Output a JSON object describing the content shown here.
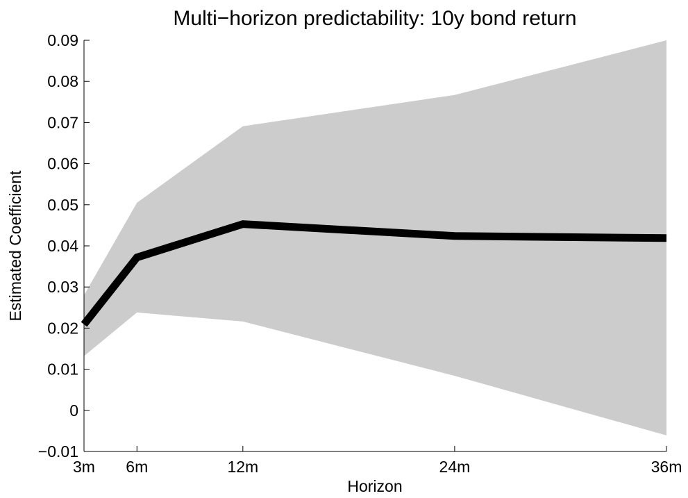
{
  "chart_data": {
    "type": "band-line",
    "title": "Multi−horizon predictability: 10y bond return",
    "x_label": "Horizon",
    "y_label": "Estimated Coefficient",
    "x": [
      3,
      6,
      12,
      24,
      36
    ],
    "values": [
      0.0209,
      0.0372,
      0.0453,
      0.0424,
      0.0419
    ],
    "upper": [
      0.028,
      0.0505,
      0.0691,
      0.0767,
      0.09
    ],
    "lower": [
      0.0132,
      0.0238,
      0.0216,
      0.0084,
      -0.0061
    ],
    "color": "#000000",
    "band_color": "#cccccc",
    "xlim": [
      3,
      36
    ],
    "xticks": [
      {
        "value": 3,
        "label": "3m"
      },
      {
        "value": 6,
        "label": "6m"
      },
      {
        "value": 12,
        "label": "12m"
      },
      {
        "value": 24,
        "label": "24m"
      },
      {
        "value": 36,
        "label": "36m"
      }
    ],
    "ylim": [
      -0.01,
      0.09
    ],
    "yticks": [
      {
        "value": -0.01,
        "label": "−0.01"
      },
      0,
      0.01,
      0.02,
      0.03,
      0.04,
      0.05,
      0.06,
      0.07,
      0.08,
      0.09
    ]
  }
}
